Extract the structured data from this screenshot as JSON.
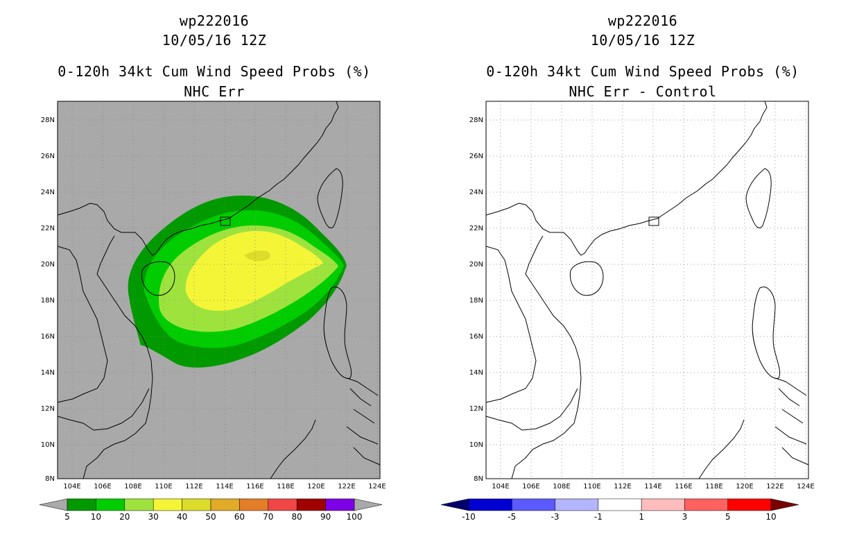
{
  "left": {
    "storm_id": "wp222016",
    "datetime": "10/05/16 12Z",
    "product": "0-120h 34kt Cum Wind Speed Probs (%)",
    "subtitle": "NHC Err",
    "map_background": "#a9a9a9",
    "lat_labels": [
      "8N",
      "10N",
      "12N",
      "14N",
      "16N",
      "18N",
      "20N",
      "22N",
      "24N",
      "26N",
      "28N"
    ],
    "lon_labels": [
      "104E",
      "106E",
      "108E",
      "110E",
      "112E",
      "114E",
      "116E",
      "118E",
      "120E",
      "122E",
      "124E"
    ],
    "colorbar": {
      "colors": [
        "#009a00",
        "#00cd00",
        "#9ee33d",
        "#f5f537",
        "#dcdc2a",
        "#e1aa28",
        "#e47d28",
        "#f04646",
        "#a10000",
        "#7d00e6"
      ],
      "under_color": "#a9a9a9",
      "over_color": "#a9a9a9",
      "labels": [
        "5",
        "10",
        "20",
        "30",
        "40",
        "50",
        "60",
        "70",
        "80",
        "90",
        "100"
      ]
    }
  },
  "right": {
    "storm_id": "wp222016",
    "datetime": "10/05/16 12Z",
    "product": "0-120h 34kt Cum Wind Speed Probs (%)",
    "subtitle": "NHC Err - Control",
    "map_background": "#ffffff",
    "lat_labels": [
      "8N",
      "10N",
      "12N",
      "14N",
      "16N",
      "18N",
      "20N",
      "22N",
      "24N",
      "26N",
      "28N"
    ],
    "lon_labels": [
      "104E",
      "106E",
      "108E",
      "110E",
      "112E",
      "114E",
      "116E",
      "118E",
      "120E",
      "122E",
      "124E"
    ],
    "colorbar": {
      "colors": [
        "#0000d2",
        "#5a5aff",
        "#b4b4ff",
        "#ffffff",
        "#ffbdbd",
        "#ff6060",
        "#ff0000"
      ],
      "under_color": "#00006e",
      "over_color": "#780000",
      "labels": [
        "-10",
        "-5",
        "-3",
        "-1",
        "1",
        "3",
        "5",
        "10"
      ]
    }
  }
}
